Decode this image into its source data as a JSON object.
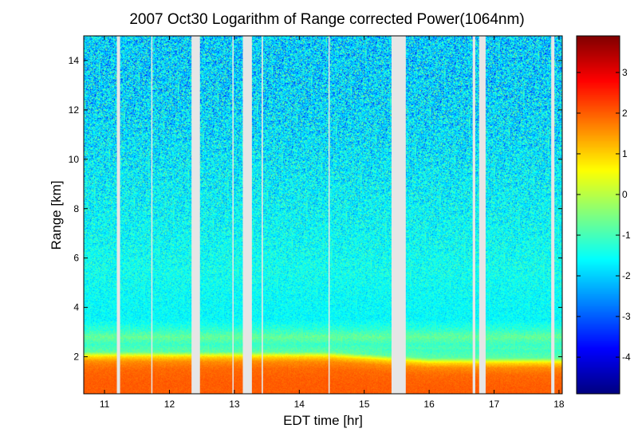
{
  "figure": {
    "background": "#ffffff",
    "gap_color": "#e6e6e6"
  },
  "chart_data": {
    "type": "heatmap",
    "title": "2007 Oct30  Logarithm of Range corrected Power(1064nm)",
    "xlabel": "EDT time [hr]",
    "ylabel": "Range [km]",
    "xlim": [
      10.68,
      18.05
    ],
    "ylim": [
      0.5,
      15
    ],
    "x_ticks": [
      11,
      12,
      13,
      14,
      15,
      16,
      17,
      18
    ],
    "y_ticks": [
      2,
      4,
      6,
      8,
      10,
      12,
      14
    ],
    "colorbar": {
      "colormap": "jet",
      "clim": [
        -4.9,
        3.9
      ],
      "ticks": [
        3,
        2,
        1,
        0,
        -1,
        -2,
        -3,
        -4
      ]
    },
    "data_gaps_hr": [
      [
        11.19,
        11.24
      ],
      [
        11.72,
        11.73
      ],
      [
        12.34,
        12.47
      ],
      [
        12.97,
        12.98
      ],
      [
        13.13,
        13.27
      ],
      [
        13.42,
        13.44
      ],
      [
        14.45,
        14.46
      ],
      [
        15.42,
        15.64
      ],
      [
        16.67,
        16.71
      ],
      [
        16.77,
        16.87
      ],
      [
        17.88,
        17.93
      ]
    ],
    "profile": {
      "description": "log range-corrected power vs height",
      "range_km": [
        0.5,
        1.0,
        1.5,
        1.8,
        2.0,
        2.2,
        2.5,
        2.8,
        3.1,
        3.5,
        4.5,
        5.5,
        7.0,
        9.0,
        11.0,
        13.0,
        15.0
      ],
      "value": [
        2.0,
        2.0,
        1.9,
        1.6,
        0.9,
        -0.8,
        -1.1,
        -0.7,
        -1.2,
        -1.6,
        -1.55,
        -1.45,
        -1.55,
        -1.65,
        -1.8,
        -1.9,
        -1.95
      ]
    }
  }
}
